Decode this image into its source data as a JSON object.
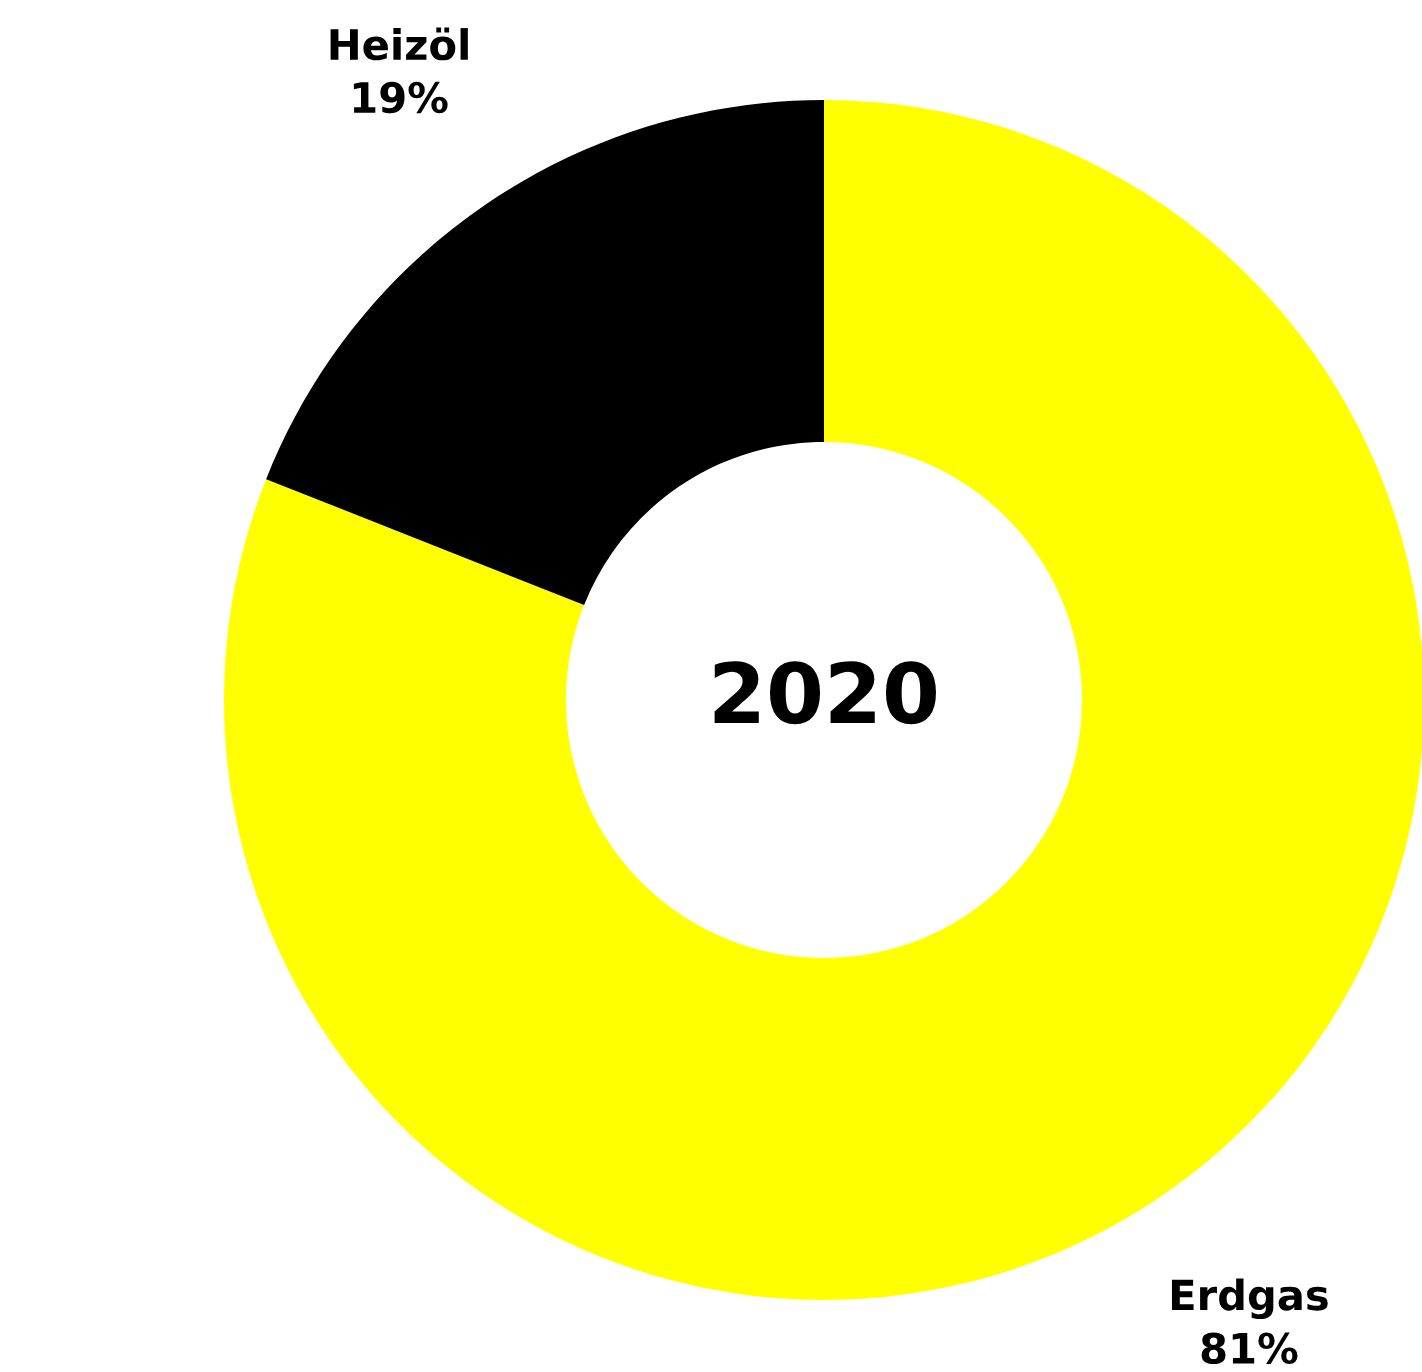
{
  "chart_data": {
    "type": "donut",
    "title": "2020",
    "categories": [
      "Erdgas",
      "Heizöl"
    ],
    "values": [
      81,
      19
    ],
    "colors": [
      "#ffff00",
      "#000000"
    ],
    "value_labels": [
      "81%",
      "19%"
    ]
  }
}
